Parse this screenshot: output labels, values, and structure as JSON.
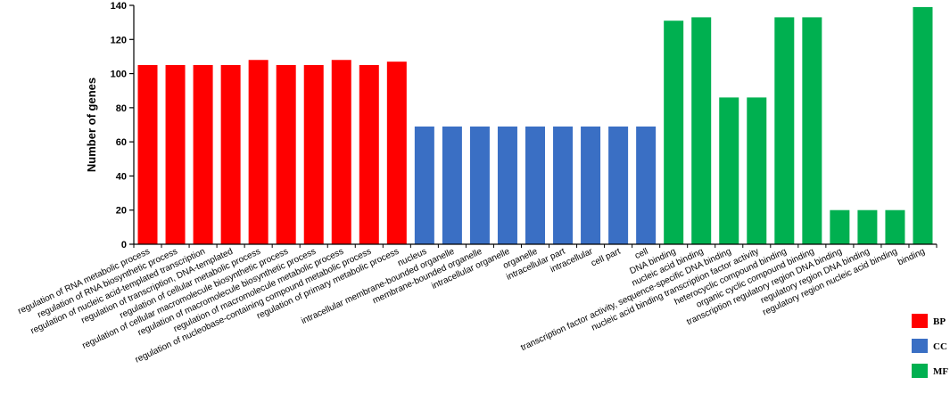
{
  "chart_data": {
    "type": "bar",
    "ylabel": "Number  of  genes",
    "xlabel": "",
    "ylim": [
      0,
      140
    ],
    "yticks": [
      0,
      20,
      40,
      60,
      80,
      100,
      120,
      140
    ],
    "categories": [
      "regulation of RNA metabolic process",
      "regulation of RNA biosynthetic process",
      "regulation of nucleic acid-templated transcription",
      "regulation of transcription, DNA-templated",
      "regulation of cellular metabolic process",
      "regulation of cellular macromolecule biosynthetic process",
      "regulation of macromolecule biosynthetic process",
      "regulation of macromolecule metabolic process",
      "regulation of nucleobase-containing compound metabolic process",
      "regulation of primary metabolic process",
      "nucleus",
      "intracellular membrane-bounded organelle",
      "membrane-bounded organelle",
      "intracellular organelle",
      "organelle",
      "intracellular part",
      "intracellular",
      "cell part",
      "cell",
      "DNA binding",
      "nucleic acid binding",
      "transcription factor activity, sequence-specific DNA binding",
      "nucleic acid binding transcription factor activity",
      "heterocyclic compound binding",
      "organic cyclic compound binding",
      "transcription regulatory region DNA binding",
      "regulatory region DNA binding",
      "regulatory region nucleic acid binding",
      "binding"
    ],
    "values": [
      105,
      105,
      105,
      105,
      108,
      105,
      105,
      108,
      105,
      107,
      69,
      69,
      69,
      69,
      69,
      69,
      69,
      69,
      69,
      131,
      133,
      86,
      86,
      133,
      133,
      20,
      20,
      20,
      139
    ],
    "groups": [
      "BP",
      "BP",
      "BP",
      "BP",
      "BP",
      "BP",
      "BP",
      "BP",
      "BP",
      "BP",
      "CC",
      "CC",
      "CC",
      "CC",
      "CC",
      "CC",
      "CC",
      "CC",
      "CC",
      "MF",
      "MF",
      "MF",
      "MF",
      "MF",
      "MF",
      "MF",
      "MF",
      "MF",
      "MF"
    ],
    "legend": {
      "position": "bottom-right",
      "entries": [
        {
          "key": "BP",
          "label": "BP",
          "color": "#ff0000"
        },
        {
          "key": "CC",
          "label": "CC",
          "color": "#3a6fc4"
        },
        {
          "key": "MF",
          "label": "MF",
          "color": "#00b050"
        }
      ]
    },
    "grid": false
  }
}
